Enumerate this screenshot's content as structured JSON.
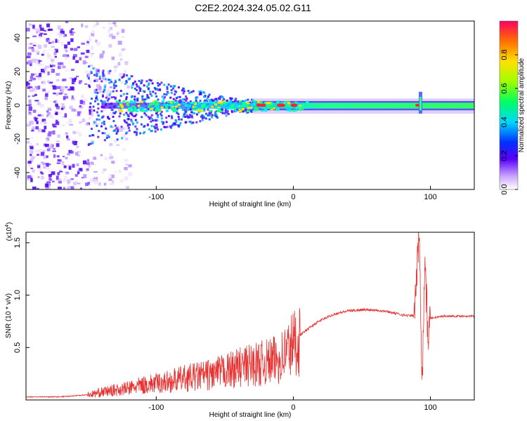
{
  "title": "C2E2.2024.324.05.02.G11",
  "chart_data": [
    {
      "type": "heatmap",
      "xlabel": "Height of straight line (km)",
      "ylabel": "Frequency (Hz)",
      "xlim": [
        -195,
        132
      ],
      "ylim": [
        -50,
        50
      ],
      "x_ticks": [
        -100,
        0,
        100
      ],
      "y_ticks": [
        -40,
        -20,
        0,
        20,
        40
      ],
      "colorbar": {
        "label": "Normalized spectral amplitude",
        "ticks": [
          0.0,
          0.2,
          0.4,
          0.6,
          0.8
        ],
        "range": [
          0,
          1
        ]
      },
      "features": [
        {
          "x": [
            -195,
            -140
          ],
          "description_type": "diffuse noise"
        },
        {
          "x": [
            -140,
            130
          ],
          "center_freq": 0
        },
        {
          "x": [
            92,
            94
          ],
          "spike_freq_range": [
            -5,
            8
          ]
        }
      ],
      "grid": false,
      "legend": "colorbar right"
    },
    {
      "type": "line",
      "xlabel": "Height of straight line (km)",
      "ylabel": "SNR (10 * v/v)",
      "scale_label": "(x10^4)",
      "xlim": [
        -195,
        132
      ],
      "ylim": [
        0,
        1.6
      ],
      "x_ticks": [
        -100,
        0,
        100
      ],
      "y_ticks": [
        0.5,
        1.0,
        1.5
      ],
      "series": [
        {
          "color": "#e83030",
          "x": [
            -195,
            -170,
            -150,
            -140,
            -130,
            -120,
            -110,
            -100,
            -90,
            -80,
            -70,
            -60,
            -50,
            -40,
            -30,
            -20,
            -10,
            -5,
            0,
            5,
            10,
            15,
            20,
            30,
            40,
            50,
            60,
            70,
            80,
            88,
            92,
            94,
            96,
            98,
            100,
            110,
            120,
            132
          ],
          "y": [
            0.03,
            0.03,
            0.05,
            0.08,
            0.1,
            0.12,
            0.15,
            0.17,
            0.19,
            0.22,
            0.24,
            0.26,
            0.29,
            0.33,
            0.36,
            0.38,
            0.42,
            0.5,
            0.58,
            0.62,
            0.67,
            0.72,
            0.76,
            0.82,
            0.85,
            0.86,
            0.86,
            0.84,
            0.81,
            0.8,
            1.6,
            0.15,
            1.4,
            0.6,
            0.78,
            0.8,
            0.8,
            0.8
          ]
        }
      ],
      "grid": false
    }
  ]
}
